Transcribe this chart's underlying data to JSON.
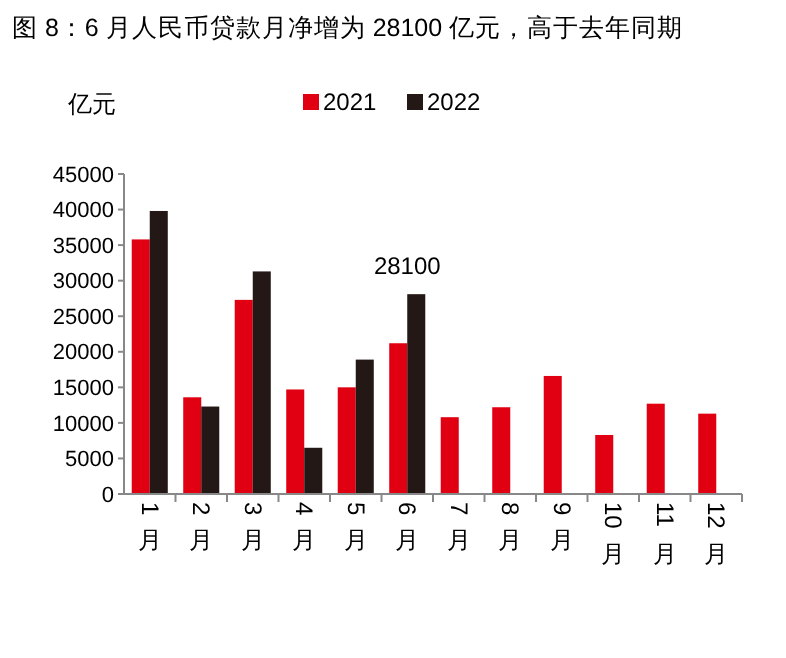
{
  "chart_data": {
    "type": "bar",
    "title": "图 8：6 月人民币贷款月净增为 28100 亿元，高于去年同期",
    "ylabel": "亿元",
    "categories": [
      "1月",
      "2月",
      "3月",
      "4月",
      "5月",
      "6月",
      "7月",
      "8月",
      "9月",
      "10月",
      "11月",
      "12月"
    ],
    "series": [
      {
        "name": "2021",
        "color": "#e00012",
        "values": [
          35800,
          13600,
          27300,
          14700,
          15000,
          21200,
          10800,
          12200,
          16600,
          8300,
          12700,
          11300
        ]
      },
      {
        "name": "2022",
        "color": "#231815",
        "values": [
          39800,
          12300,
          31300,
          6500,
          18900,
          28100,
          null,
          null,
          null,
          null,
          null,
          null
        ]
      }
    ],
    "ylim": [
      0,
      45000
    ],
    "yticks": [
      0,
      5000,
      10000,
      15000,
      20000,
      25000,
      30000,
      35000,
      40000,
      45000
    ],
    "annotations": [
      {
        "text": "28100",
        "x": "6月",
        "y": 28100
      }
    ],
    "legend": "top",
    "grid": false
  }
}
